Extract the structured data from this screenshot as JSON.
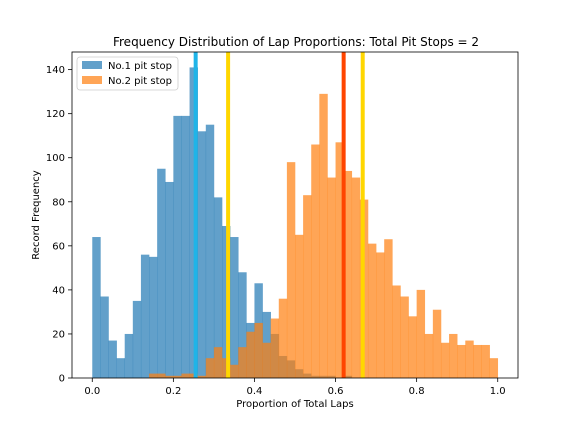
{
  "chart_data": {
    "type": "bar",
    "title": "Frequency Distribution of Lap Proportions: Total Pit Stops = 2",
    "xlabel": "Proportion of Total Laps",
    "ylabel": "Record Frequency",
    "xlim": [
      -0.05,
      1.05
    ],
    "ylim": [
      0,
      148
    ],
    "xticks": [
      0.0,
      0.2,
      0.4,
      0.6,
      0.8,
      1.0
    ],
    "xtick_labels": [
      "0.0",
      "0.2",
      "0.4",
      "0.6",
      "0.8",
      "1.0"
    ],
    "yticks": [
      0,
      20,
      40,
      60,
      80,
      100,
      120,
      140
    ],
    "ytick_labels": [
      "0",
      "20",
      "40",
      "60",
      "80",
      "100",
      "120",
      "140"
    ],
    "bin_width": 0.02,
    "legend_position": "top-left",
    "series": [
      {
        "name": "No.1 pit stop",
        "color": "#1f77b4",
        "opacity": 0.7,
        "bin_start": 0.0,
        "values": [
          64,
          37,
          17,
          9,
          20,
          35,
          56,
          55,
          95,
          89,
          119,
          119,
          141,
          112,
          115,
          82,
          69,
          64,
          48,
          25,
          43,
          30,
          20,
          10,
          8,
          4,
          2,
          1,
          1,
          1,
          0,
          1,
          0,
          0,
          0,
          0,
          0,
          0,
          0,
          0,
          0,
          0,
          0,
          0,
          0,
          0,
          0,
          0,
          0,
          0
        ]
      },
      {
        "name": "No.2 pit stop",
        "color": "#ff7f0e",
        "opacity": 0.7,
        "bin_start": 0.0,
        "values": [
          0,
          0,
          0,
          0,
          0,
          0,
          0,
          2,
          2,
          1,
          1,
          2,
          2,
          1,
          9,
          14,
          9,
          6,
          14,
          21,
          25,
          16,
          27,
          36,
          98,
          65,
          83,
          106,
          129,
          91,
          107,
          94,
          91,
          81,
          61,
          57,
          63,
          42,
          37,
          28,
          40,
          20,
          31,
          16,
          20,
          15,
          17,
          15,
          15,
          9
        ]
      }
    ],
    "vlines": [
      {
        "x": 0.255,
        "color": "#1fb4e8"
      },
      {
        "x": 0.335,
        "color": "#ffd700"
      },
      {
        "x": 0.62,
        "color": "#ff4500"
      },
      {
        "x": 0.667,
        "color": "#ffd700"
      }
    ]
  }
}
